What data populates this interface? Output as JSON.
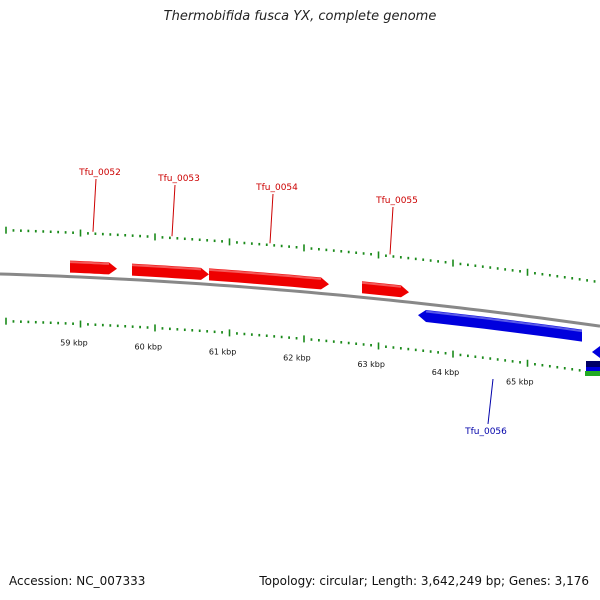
{
  "title": "Thermobifida fusca YX, complete genome",
  "footer": {
    "accession": "Accession: NC_007333",
    "summary": "Topology: circular; Length: 3,642,249 bp; Genes: 3,176"
  },
  "colors": {
    "forward_gene": "#ee0000",
    "reverse_gene": "#0000dd",
    "forward_label": "#cc0000",
    "reverse_label": "#0000aa",
    "tick": "#1a8a1a",
    "backbone": "#888888",
    "green_feature": "#22aa22",
    "navy_feature": "#000066"
  },
  "scale": {
    "unit": "kbp",
    "labels": [
      "59 kbp",
      "60 kbp",
      "61 kbp",
      "62 kbp",
      "63 kbp",
      "64 kbp",
      "65 kbp"
    ]
  },
  "genes": [
    {
      "name": "Tfu_0052",
      "strand": "forward"
    },
    {
      "name": "Tfu_0053",
      "strand": "forward"
    },
    {
      "name": "Tfu_0054",
      "strand": "forward"
    },
    {
      "name": "Tfu_0055",
      "strand": "forward"
    },
    {
      "name": "Tfu_0056",
      "strand": "reverse"
    }
  ]
}
